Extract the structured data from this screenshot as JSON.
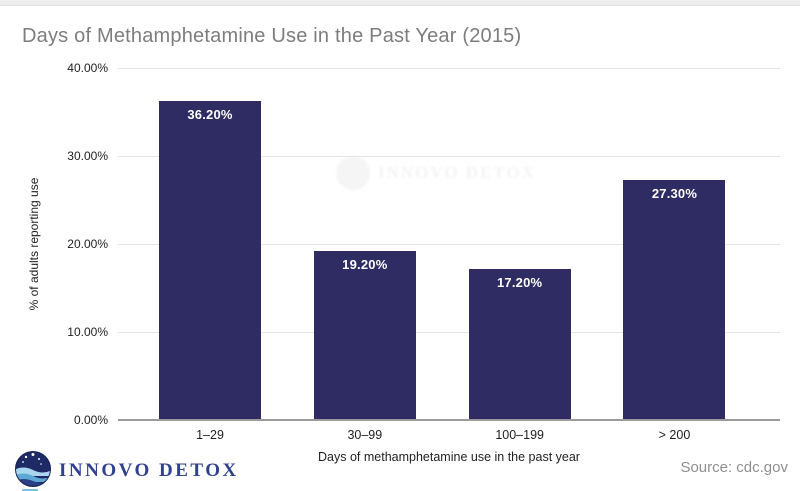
{
  "page": {
    "title": "Days of Methamphetamine Use in the Past Year (2015)",
    "source": "Source: cdc.gov",
    "brand": {
      "name": "INNOVO DETOX",
      "icon": "globe-wave-icon"
    },
    "watermark": "INNOVO DETOX"
  },
  "chart_data": {
    "type": "bar",
    "title": "Days of Methamphetamine Use in the Past Year (2015)",
    "categories": [
      "1–29",
      "30–99",
      "100–199",
      "> 200"
    ],
    "values": [
      36.2,
      19.2,
      17.2,
      27.3
    ],
    "data_labels": [
      "36.20%",
      "19.20%",
      "17.20%",
      "27.30%"
    ],
    "xlabel": "Days of methamphetamine use in the past year",
    "ylabel": "% of adults reporting use",
    "ylim": [
      0,
      40
    ],
    "yticks": [
      "0.00%",
      "10.00%",
      "20.00%",
      "30.00%",
      "40.00%"
    ],
    "grid": true,
    "legend": "none",
    "bar_color": "#2e2c62",
    "data_label_color": "#ffffff",
    "title_color": "#7d7d7d"
  }
}
